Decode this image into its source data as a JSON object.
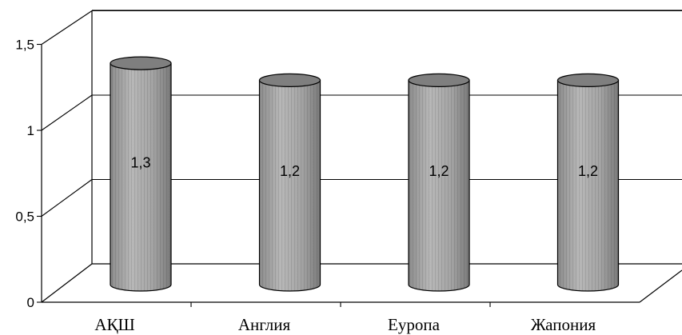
{
  "chart_data": {
    "type": "bar",
    "style": "3d-cylinder",
    "categories": [
      "АҚШ",
      "Англия",
      "Еуропа",
      "Жапония"
    ],
    "values": [
      1.3,
      1.2,
      1.2,
      1.2
    ],
    "data_labels": [
      "1,3",
      "1,2",
      "1,2",
      "1,2"
    ],
    "y_ticks": [
      0,
      0.5,
      1,
      1.5
    ],
    "y_tick_labels": [
      "0",
      "0,5",
      "1",
      "1,5"
    ],
    "ylim": [
      0,
      1.5
    ],
    "title": "",
    "xlabel": "",
    "ylabel": "",
    "grid": true,
    "legend": "none",
    "colors": {
      "bar_body": "#a8a8a8",
      "bar_top": "#7f7f7f",
      "bar_edge": "#000000",
      "axis": "#000000",
      "grid": "#000000",
      "background": "#ffffff"
    }
  }
}
